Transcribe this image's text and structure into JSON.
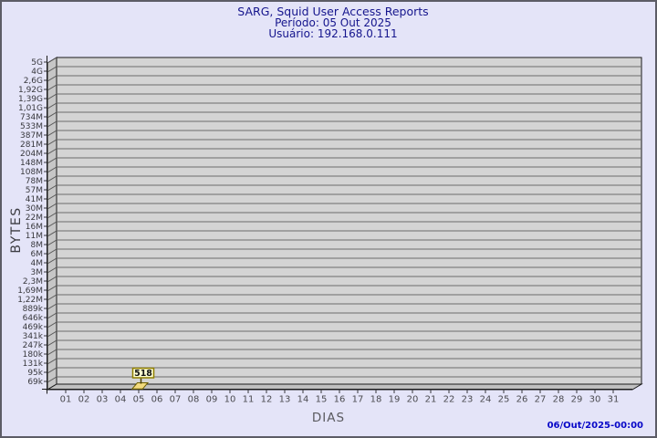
{
  "header": {
    "title": "SARG, Squid User Access Reports",
    "period": "Período: 05 Out 2025",
    "user": "Usuário: 192.168.0.111"
  },
  "y_axis": {
    "label": "BYTES",
    "tick_labels": [
      "5G",
      "4G",
      "2,6G",
      "1,92G",
      "1,39G",
      "1,01G",
      "734M",
      "533M",
      "387M",
      "281M",
      "204M",
      "148M",
      "108M",
      "78M",
      "57M",
      "41M",
      "30M",
      "22M",
      "16M",
      "11M",
      "8M",
      "6M",
      "4M",
      "3M",
      "2,3M",
      "1,69M",
      "1,22M",
      "889k",
      "646k",
      "469k",
      "341k",
      "247k",
      "180k",
      "131k",
      "95k",
      "69k"
    ]
  },
  "x_axis": {
    "label": "DIAS",
    "tick_labels": [
      "01",
      "02",
      "03",
      "04",
      "05",
      "06",
      "07",
      "08",
      "09",
      "10",
      "11",
      "12",
      "13",
      "14",
      "15",
      "16",
      "17",
      "18",
      "19",
      "20",
      "21",
      "22",
      "23",
      "24",
      "25",
      "26",
      "27",
      "28",
      "29",
      "30",
      "31"
    ]
  },
  "tooltip": {
    "value": "518"
  },
  "footer": {
    "timestamp": "06/Out/2025-00:00"
  },
  "colors": {
    "background": "#e4e4f8",
    "plot_bg": "#d4d4d4",
    "wall": "#c6c6c6",
    "floor": "#c0c0c0",
    "grid_line": "#6b6b6b",
    "edge": "#1a1a1a",
    "title_text": "#15158d",
    "timestamp_text": "#0808c8",
    "bar_fill": "#f2da7e",
    "bar_edge": "#6e6000",
    "tooltip_bg": "#ffffd2",
    "tooltip_border": "#8f7e00"
  },
  "chart_data": {
    "type": "bar",
    "title": "SARG, Squid User Access Reports",
    "subtitle": [
      "Período: 05 Out 2025",
      "Usuário: 192.168.0.111"
    ],
    "xlabel": "DIAS",
    "ylabel": "BYTES",
    "categories": [
      "01",
      "02",
      "03",
      "04",
      "05",
      "06",
      "07",
      "08",
      "09",
      "10",
      "11",
      "12",
      "13",
      "14",
      "15",
      "16",
      "17",
      "18",
      "19",
      "20",
      "21",
      "22",
      "23",
      "24",
      "25",
      "26",
      "27",
      "28",
      "29",
      "30",
      "31"
    ],
    "values": [
      0,
      0,
      0,
      0,
      518,
      0,
      0,
      0,
      0,
      0,
      0,
      0,
      0,
      0,
      0,
      0,
      0,
      0,
      0,
      0,
      0,
      0,
      0,
      0,
      0,
      0,
      0,
      0,
      0,
      0,
      0
    ],
    "y_scale": "log",
    "y_tick_labels": [
      "5G",
      "4G",
      "2,6G",
      "1,92G",
      "1,39G",
      "1,01G",
      "734M",
      "533M",
      "387M",
      "281M",
      "204M",
      "148M",
      "108M",
      "78M",
      "57M",
      "41M",
      "30M",
      "22M",
      "16M",
      "11M",
      "8M",
      "6M",
      "4M",
      "3M",
      "2,3M",
      "1,69M",
      "1,22M",
      "889k",
      "646k",
      "469k",
      "341k",
      "247k",
      "180k",
      "131k",
      "95k",
      "69k"
    ],
    "grid": true,
    "legend": false,
    "style": "3d-bar",
    "annotations": [
      {
        "category": "05",
        "label": "518",
        "unit": "bytes"
      }
    ],
    "generated_at": "06/Out/2025-00:00"
  }
}
